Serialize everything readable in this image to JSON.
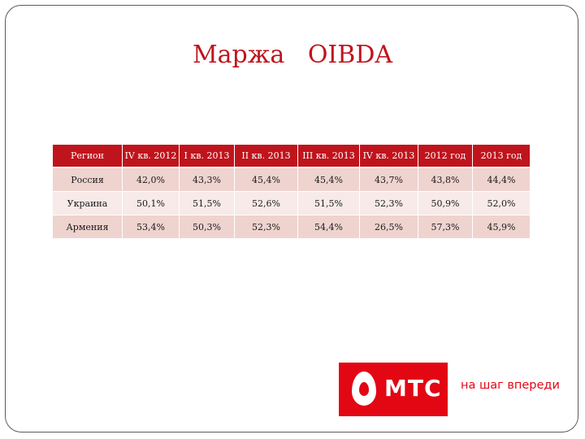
{
  "slide": {
    "title": "Маржа   OIBDA"
  },
  "table": {
    "headers": [
      "Регион",
      "IV кв. 2012",
      "I кв. 2013",
      "II кв. 2013",
      "III кв. 2013",
      "IV кв. 2013",
      "2012 год",
      "2013 год"
    ],
    "rows": [
      [
        "Россия",
        "42,0%",
        "43,3%",
        "45,4%",
        "45,4%",
        "43,7%",
        "43,8%",
        "44,4%"
      ],
      [
        "Украина",
        "50,1%",
        "51,5%",
        "52,6%",
        "51,5%",
        "52,3%",
        "50,9%",
        "52,0%"
      ],
      [
        "Армения",
        "53,4%",
        "50,3%",
        "52,3%",
        "54,4%",
        "26,5%",
        "57,3%",
        "45,9%"
      ]
    ]
  },
  "logo": {
    "brand": "МТС",
    "tagline": "на шаг впереди",
    "color": "#e30613"
  },
  "colors": {
    "accent": "#c0141d",
    "row_odd": "#efd3cf",
    "row_even": "#f7eae8"
  }
}
